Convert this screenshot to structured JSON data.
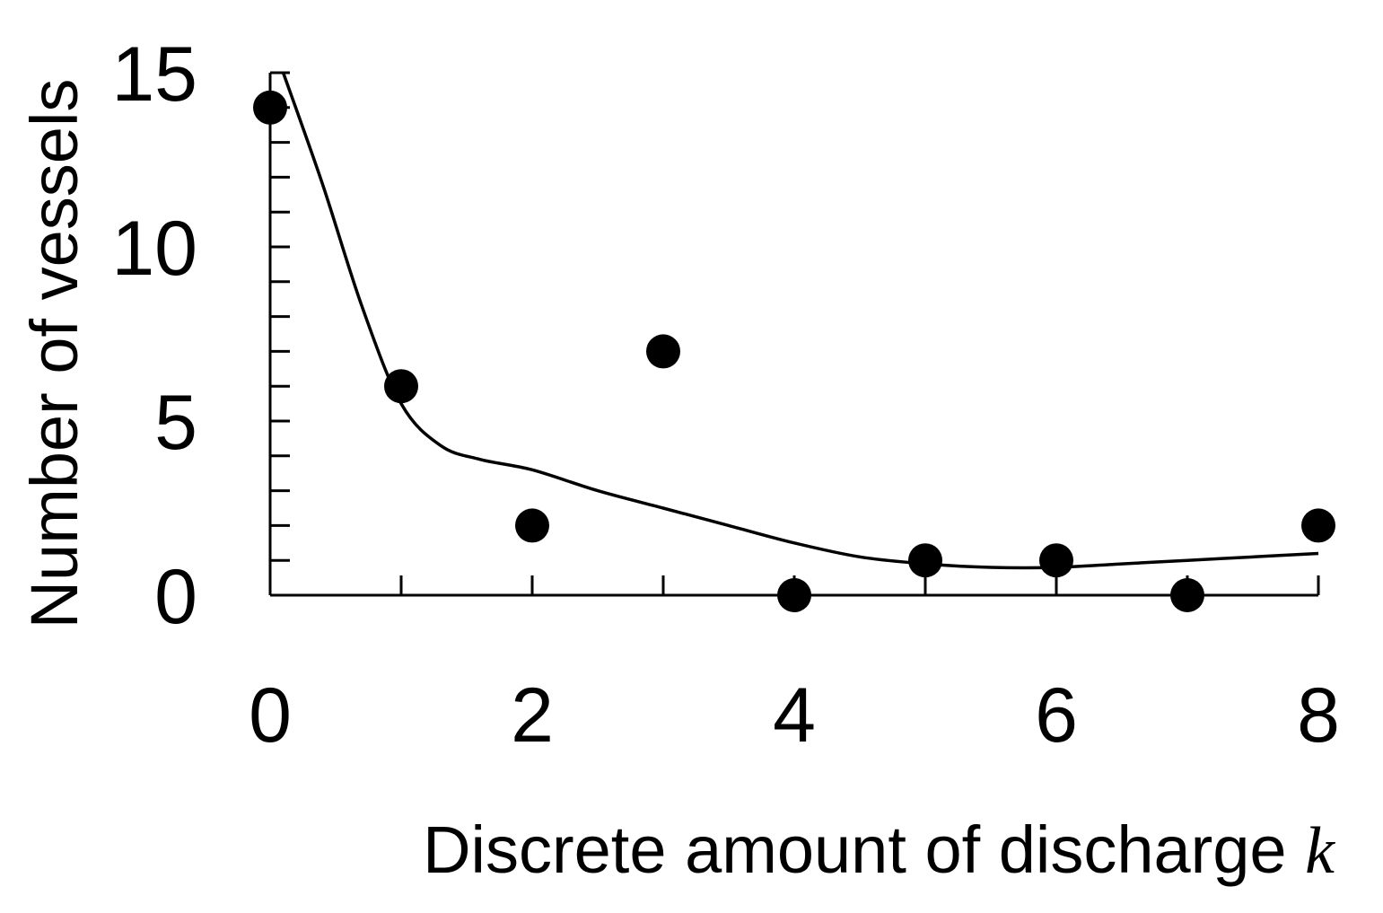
{
  "chart_data": {
    "type": "scatter",
    "xlabel": "Discrete amount of discharge ",
    "xlabel_var": "k",
    "ylabel": "Number of vessels",
    "xlim": [
      0,
      8
    ],
    "ylim": [
      0,
      15
    ],
    "x_ticks": [
      0,
      2,
      4,
      6,
      8
    ],
    "x_minor_ticks": [
      1,
      3,
      5,
      7
    ],
    "y_ticks": [
      0,
      5,
      10,
      15
    ],
    "y_minor_step": 1,
    "grid": false,
    "series": [
      {
        "type": "scatter",
        "x": [
          0,
          1,
          2,
          3,
          4,
          5,
          6,
          7,
          8
        ],
        "y": [
          14,
          6,
          2,
          7,
          0,
          1,
          1,
          0,
          2
        ]
      },
      {
        "type": "line",
        "x": [
          0.1,
          0.4,
          0.7,
          1.0,
          1.3,
          1.6,
          2.0,
          2.5,
          3.0,
          3.5,
          4.0,
          4.5,
          5.0,
          5.5,
          6.0,
          6.5,
          7.0,
          7.5,
          8.0
        ],
        "y": [
          15.0,
          11.8,
          8.3,
          5.5,
          4.3,
          3.9,
          3.6,
          3.0,
          2.5,
          2.0,
          1.5,
          1.1,
          0.9,
          0.8,
          0.8,
          0.9,
          1.0,
          1.1,
          1.2
        ]
      }
    ]
  }
}
